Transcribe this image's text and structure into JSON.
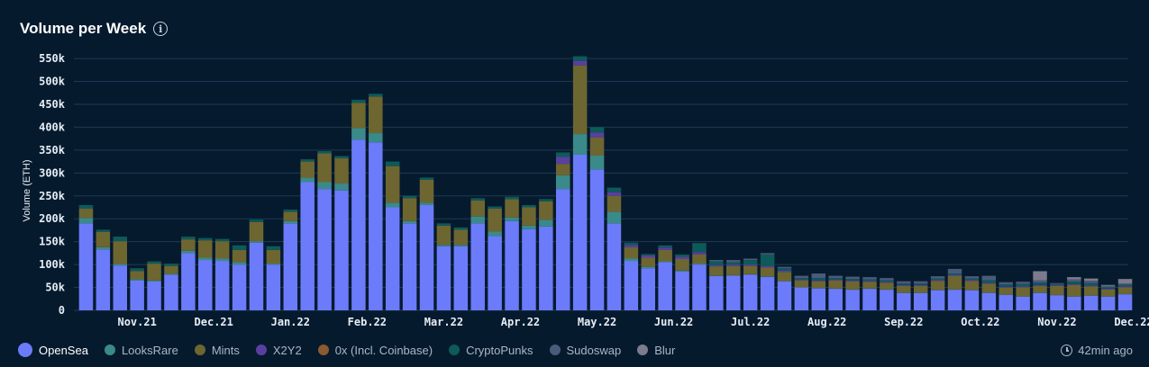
{
  "header": {
    "title": "Volume per Week",
    "info_icon": "info-icon"
  },
  "chart_data": {
    "type": "bar",
    "stacked": true,
    "ylabel": "Volume (ETH)",
    "ylim": [
      0,
      560000
    ],
    "yticks": [
      0,
      50000,
      100000,
      150000,
      200000,
      250000,
      300000,
      350000,
      400000,
      450000,
      500000,
      550000
    ],
    "ytick_labels": [
      "0",
      "50k",
      "100k",
      "150k",
      "200k",
      "250k",
      "300k",
      "350k",
      "400k",
      "450k",
      "500k",
      "550k"
    ],
    "x_tick_labels": [
      {
        "label": "Nov.21",
        "index": 3
      },
      {
        "label": "Dec.21",
        "index": 7.5
      },
      {
        "label": "Jan.22",
        "index": 12
      },
      {
        "label": "Feb.22",
        "index": 16.5
      },
      {
        "label": "Mar.22",
        "index": 21
      },
      {
        "label": "Apr.22",
        "index": 25.5
      },
      {
        "label": "May.22",
        "index": 30
      },
      {
        "label": "Jun.22",
        "index": 34.5
      },
      {
        "label": "Jul.22",
        "index": 39
      },
      {
        "label": "Aug.22",
        "index": 43.5
      },
      {
        "label": "Sep.22",
        "index": 48
      },
      {
        "label": "Oct.22",
        "index": 52.5
      },
      {
        "label": "Nov.22",
        "index": 57
      },
      {
        "label": "Dec.22",
        "index": 61.5
      }
    ],
    "series": [
      {
        "name": "OpenSea",
        "color": "#6b7bfa",
        "values": [
          190000,
          133000,
          98000,
          65000,
          63000,
          78000,
          125000,
          110000,
          108000,
          100000,
          148000,
          100000,
          190000,
          280000,
          265000,
          262000,
          373000,
          367000,
          225000,
          190000,
          230000,
          140000,
          140000,
          190000,
          162000,
          195000,
          177000,
          183000,
          265000,
          340000,
          308000,
          190000,
          108000,
          92000,
          105000,
          85000,
          100000,
          75000,
          76000,
          78000,
          73000,
          63000,
          50000,
          48000,
          47000,
          45000,
          47000,
          45000,
          38000,
          38000,
          44000,
          45000,
          44000,
          38000,
          34000,
          30000,
          38000,
          33000,
          30000,
          32000,
          30000,
          35000
        ]
      },
      {
        "name": "LooksRare",
        "color": "#3a8a8a",
        "values": [
          12000,
          5000,
          3000,
          3000,
          2000,
          2000,
          5000,
          5000,
          5000,
          5000,
          3000,
          2000,
          5000,
          10000,
          15000,
          15000,
          25000,
          20000,
          10000,
          5000,
          5000,
          3000,
          3000,
          15000,
          10000,
          8000,
          8000,
          15000,
          30000,
          45000,
          30000,
          25000,
          5000,
          3000,
          2000,
          2000,
          2000,
          1000,
          1000,
          1000,
          1000,
          1000,
          500,
          500,
          500,
          500,
          500,
          500,
          500,
          500,
          500,
          500,
          500,
          500,
          500,
          500,
          500,
          500,
          500,
          500,
          500,
          500
        ]
      },
      {
        "name": "Mints",
        "color": "#6e6630",
        "values": [
          20000,
          33000,
          50000,
          18000,
          37000,
          17000,
          25000,
          38000,
          38000,
          27000,
          42000,
          30000,
          20000,
          35000,
          63000,
          55000,
          55000,
          80000,
          80000,
          50000,
          50000,
          42000,
          33000,
          35000,
          50000,
          40000,
          40000,
          40000,
          25000,
          150000,
          40000,
          35000,
          25000,
          20000,
          25000,
          25000,
          20000,
          20000,
          20000,
          18000,
          20000,
          20000,
          15000,
          15000,
          18000,
          18000,
          15000,
          15000,
          15000,
          15000,
          20000,
          30000,
          20000,
          20000,
          15000,
          20000,
          15000,
          20000,
          25000,
          20000,
          15000,
          15000
        ]
      },
      {
        "name": "X2Y2",
        "color": "#5a3fa0",
        "values": [
          0,
          0,
          0,
          0,
          0,
          0,
          0,
          0,
          0,
          0,
          0,
          0,
          0,
          0,
          0,
          0,
          0,
          0,
          0,
          0,
          0,
          0,
          0,
          0,
          0,
          0,
          0,
          0,
          15000,
          10000,
          10000,
          8000,
          5000,
          5000,
          5000,
          5000,
          5000,
          3000,
          3000,
          3000,
          3000,
          3000,
          2000,
          2000,
          2000,
          2000,
          2000,
          2000,
          2000,
          2000,
          2000,
          2000,
          2000,
          2000,
          2000,
          2000,
          2000,
          2000,
          2000,
          2000,
          2000,
          2000
        ]
      },
      {
        "name": "0x (Incl. Coinbase)",
        "color": "#8a5a30",
        "values": [
          0,
          0,
          0,
          0,
          0,
          0,
          0,
          0,
          0,
          0,
          0,
          0,
          0,
          0,
          0,
          0,
          0,
          0,
          0,
          0,
          0,
          0,
          0,
          0,
          0,
          0,
          0,
          0,
          0,
          0,
          0,
          0,
          0,
          0,
          0,
          0,
          0,
          0,
          0,
          0,
          0,
          0,
          0,
          0,
          0,
          0,
          0,
          0,
          0,
          0,
          0,
          0,
          0,
          0,
          0,
          0,
          0,
          0,
          0,
          0,
          0,
          0
        ]
      },
      {
        "name": "CryptoPunks",
        "color": "#0d5a5a",
        "values": [
          8000,
          5000,
          10000,
          6000,
          5000,
          5000,
          6000,
          5000,
          5000,
          10000,
          5000,
          8000,
          5000,
          5000,
          5000,
          5000,
          7000,
          6000,
          10000,
          5000,
          5000,
          5000,
          5000,
          5000,
          5000,
          5000,
          5000,
          5000,
          10000,
          10000,
          12000,
          10000,
          5000,
          3000,
          5000,
          5000,
          20000,
          8000,
          5000,
          10000,
          25000,
          5000,
          3000,
          5000,
          3000,
          3000,
          3000,
          3000,
          3000,
          3000,
          3000,
          3000,
          3000,
          5000,
          5000,
          5000,
          5000,
          2000,
          5000,
          5000,
          3000,
          3000
        ]
      },
      {
        "name": "Sudoswap",
        "color": "#4a5a7a",
        "values": [
          0,
          0,
          0,
          0,
          0,
          0,
          0,
          0,
          0,
          0,
          0,
          0,
          0,
          0,
          0,
          0,
          0,
          0,
          0,
          0,
          0,
          0,
          0,
          0,
          0,
          0,
          0,
          0,
          0,
          0,
          0,
          0,
          0,
          0,
          0,
          0,
          0,
          3000,
          5000,
          3000,
          3000,
          3000,
          5000,
          10000,
          5000,
          5000,
          5000,
          5000,
          5000,
          5000,
          5000,
          10000,
          5000,
          10000,
          5000,
          5000,
          5000,
          2000,
          5000,
          5000,
          3000,
          3000
        ]
      },
      {
        "name": "Blur",
        "color": "#7c7c8c",
        "values": [
          0,
          0,
          0,
          0,
          0,
          0,
          0,
          0,
          0,
          0,
          0,
          0,
          0,
          0,
          0,
          0,
          0,
          0,
          0,
          0,
          0,
          0,
          0,
          0,
          0,
          0,
          0,
          0,
          0,
          0,
          0,
          0,
          0,
          0,
          0,
          0,
          0,
          0,
          0,
          0,
          0,
          0,
          0,
          0,
          0,
          0,
          0,
          0,
          0,
          0,
          0,
          0,
          0,
          0,
          0,
          0,
          20000,
          0,
          5000,
          5000,
          2000,
          10000
        ]
      }
    ]
  },
  "footer": {
    "updated": "42min ago",
    "updated_icon": "clock-icon"
  }
}
